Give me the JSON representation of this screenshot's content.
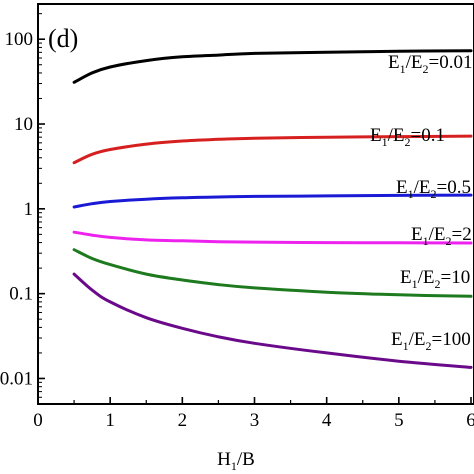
{
  "chart_data": {
    "type": "line",
    "panel_label": "(d)",
    "xlabel": "H",
    "xlabel_sub": "1",
    "xlabel_tail": "/B",
    "ylabel": "",
    "xlim": [
      0,
      6
    ],
    "ylim": [
      0.005,
      260
    ],
    "yscale": "log",
    "grid": false,
    "x_ticks": [
      0,
      1,
      2,
      3,
      4,
      5,
      6
    ],
    "x_tick_labels": [
      "0",
      "1",
      "2",
      "3",
      "4",
      "5",
      "6"
    ],
    "y_ticks": [
      0.01,
      0.1,
      1,
      10,
      100
    ],
    "y_tick_labels": [
      "0.01",
      "0.1",
      "1",
      "10",
      "100"
    ],
    "series": [
      {
        "label_parts": [
          "E",
          "1",
          "/E",
          "2",
          "=0.01"
        ],
        "color": "#000000",
        "x": [
          0.5,
          0.75,
          1,
          1.5,
          2,
          2.5,
          3,
          4,
          5,
          6
        ],
        "values": [
          31,
          40,
          47,
          56,
          62,
          65,
          68,
          70,
          72,
          73
        ]
      },
      {
        "label_parts": [
          "E",
          "1",
          "/E",
          "2",
          "=0.1"
        ],
        "color": "#d62020",
        "x": [
          0.5,
          0.75,
          1,
          1.5,
          2,
          2.5,
          3,
          4,
          5,
          6
        ],
        "values": [
          3.5,
          4.4,
          5.0,
          5.8,
          6.3,
          6.6,
          6.8,
          7.0,
          7.1,
          7.2
        ]
      },
      {
        "label_parts": [
          "E",
          "1",
          "/E",
          "2",
          "=0.5"
        ],
        "color": "#1a1ad6",
        "x": [
          0.5,
          0.75,
          1,
          1.5,
          2,
          2.5,
          3,
          4,
          5,
          6
        ],
        "values": [
          1.05,
          1.15,
          1.22,
          1.3,
          1.35,
          1.38,
          1.4,
          1.42,
          1.44,
          1.45
        ]
      },
      {
        "label_parts": [
          "E",
          "1",
          "/E",
          "2",
          "=2"
        ],
        "color": "#ee22ee",
        "x": [
          0.5,
          0.75,
          1,
          1.5,
          2,
          2.5,
          3,
          4,
          5,
          6
        ],
        "values": [
          0.53,
          0.49,
          0.46,
          0.43,
          0.42,
          0.41,
          0.405,
          0.4,
          0.398,
          0.396
        ]
      },
      {
        "label_parts": [
          "E",
          "1",
          "/E",
          "2",
          "=10"
        ],
        "color": "#1e7a1e",
        "x": [
          0.5,
          0.75,
          1,
          1.5,
          2,
          2.5,
          3,
          4,
          5,
          6
        ],
        "values": [
          0.33,
          0.26,
          0.22,
          0.17,
          0.145,
          0.128,
          0.117,
          0.104,
          0.097,
          0.093
        ]
      },
      {
        "label_parts": [
          "E",
          "1",
          "/E",
          "2",
          "=100"
        ],
        "color": "#6a0a8a",
        "x": [
          0.5,
          0.75,
          1,
          1.5,
          2,
          2.5,
          3,
          4,
          5,
          6
        ],
        "values": [
          0.17,
          0.11,
          0.08,
          0.052,
          0.039,
          0.031,
          0.026,
          0.02,
          0.016,
          0.0135
        ]
      }
    ]
  }
}
